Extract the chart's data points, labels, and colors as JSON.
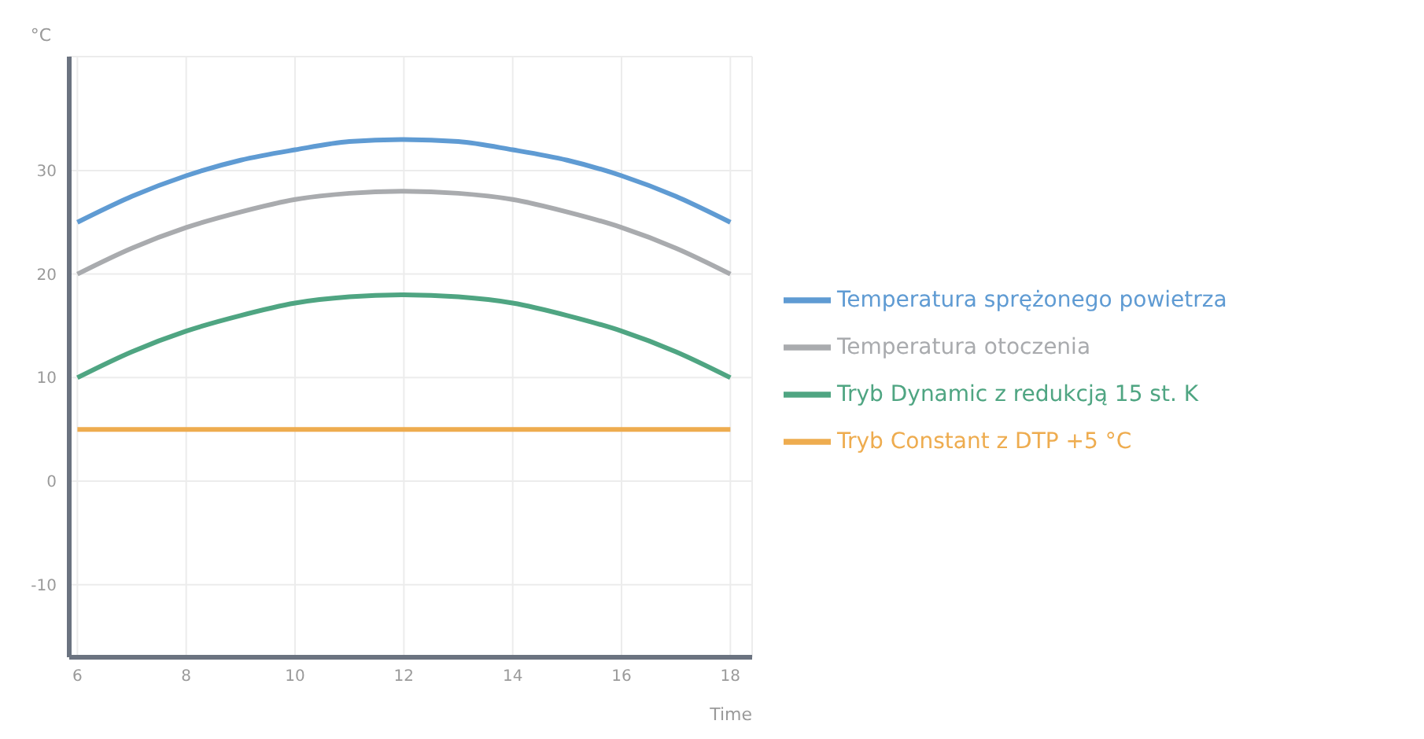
{
  "chart_data": {
    "type": "line",
    "xlabel": "Time",
    "ylabel": "°C",
    "x": [
      6,
      7,
      8,
      9,
      10,
      11,
      12,
      13,
      14,
      15,
      16,
      17,
      18
    ],
    "series": [
      {
        "name": "Temperatura sprężonego powietrza",
        "color": "#5f9bd3",
        "values": [
          25,
          27.5,
          29.5,
          31,
          32,
          32.8,
          33,
          32.8,
          32,
          31,
          29.5,
          27.5,
          25
        ]
      },
      {
        "name": "Temperatura otoczenia",
        "color": "#a9abae",
        "values": [
          20,
          22.5,
          24.5,
          26,
          27.2,
          27.8,
          28,
          27.8,
          27.2,
          26,
          24.5,
          22.5,
          20
        ]
      },
      {
        "name": "Tryb Dynamic z redukcją 15 st. K",
        "color": "#4fa582",
        "values": [
          10,
          12.5,
          14.5,
          16,
          17.2,
          17.8,
          18,
          17.8,
          17.2,
          16,
          14.5,
          12.5,
          10
        ]
      },
      {
        "name": "Tryb Constant z DTP +5 °C",
        "color": "#eeac4f",
        "values": [
          5,
          5,
          5,
          5,
          5,
          5,
          5,
          5,
          5,
          5,
          5,
          5,
          5
        ]
      }
    ],
    "xlim": [
      5.85,
      18.4
    ],
    "xticks": [
      6,
      8,
      10,
      12,
      14,
      16,
      18
    ],
    "ylim": [
      -17,
      41
    ],
    "yticks": [
      -10,
      0,
      10,
      20,
      30
    ],
    "grid": true,
    "legend": "right",
    "marker": "none",
    "line_style": "solid"
  }
}
